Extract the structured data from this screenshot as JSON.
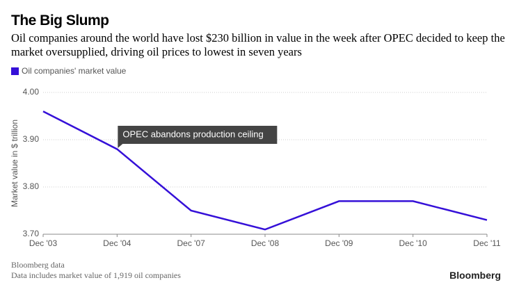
{
  "chart_data": {
    "type": "line",
    "title": "The Big Slump",
    "subtitle": "Oil companies around the world have lost $230 billion in value in the week after OPEC decided to keep the market oversupplied, driving oil prices to lowest in seven years",
    "y_label": "Market value in $ trillion",
    "categories": [
      "Dec '03",
      "Dec '04",
      "Dec '07",
      "Dec '08",
      "Dec '09",
      "Dec '10",
      "Dec '11"
    ],
    "series": [
      {
        "name": "Oil companies' market value",
        "color": "#3510d8",
        "values": [
          3.96,
          3.88,
          3.75,
          3.71,
          3.77,
          3.77,
          3.73
        ]
      }
    ],
    "ylim": [
      3.7,
      4.0
    ],
    "yticks": [
      {
        "value": 3.7,
        "label": "3.70"
      },
      {
        "value": 3.8,
        "label": "3.80"
      },
      {
        "value": 3.9,
        "label": "3.90"
      },
      {
        "value": 4.0,
        "label": "4.00"
      }
    ],
    "grid": true,
    "annotations": [
      {
        "text": "OPEC abandons production ceiling",
        "category_index": 1
      }
    ],
    "footer": [
      "Bloomberg data",
      "Data includes market value of 1,919 oil companies"
    ],
    "source_logo": "Bloomberg"
  }
}
